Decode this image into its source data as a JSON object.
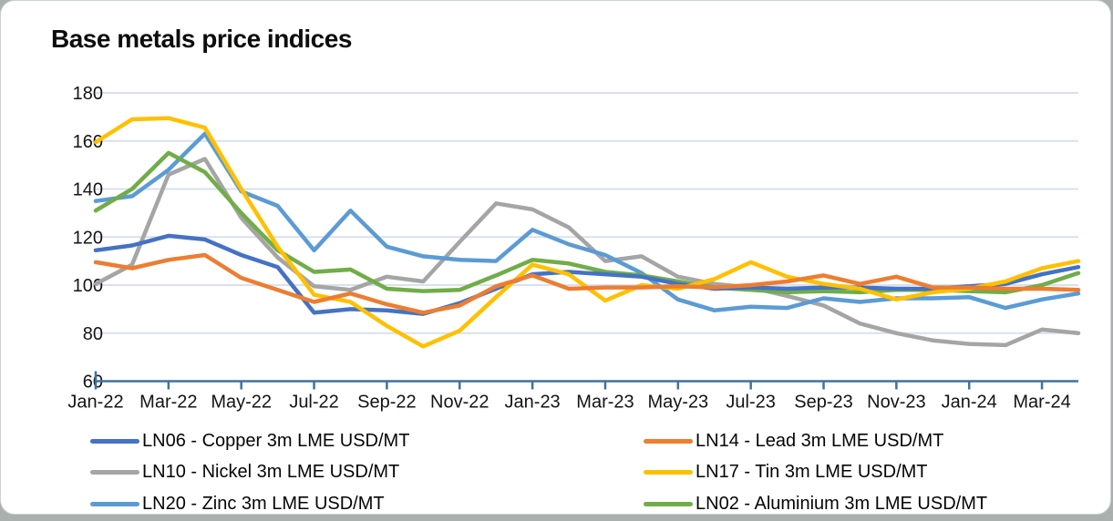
{
  "card": {
    "title": "Base metals price indices"
  },
  "colors": {
    "axis": "#41719C",
    "gridline": "#D9E1EC",
    "card_background": "#FFFFFF",
    "copper": "#4472C4",
    "lead": "#ED7D31",
    "nickel": "#A5A5A5",
    "tin": "#FFC000",
    "zinc": "#5B9BD5",
    "aluminium": "#70AD47"
  },
  "chart_data": {
    "type": "line",
    "title": "Base metals price indices",
    "xlabel": "",
    "ylabel": "",
    "ylim": [
      60,
      180
    ],
    "y_ticks": [
      60,
      80,
      100,
      120,
      140,
      160,
      180
    ],
    "grid": "horizontal",
    "legend_position": "bottom",
    "categories": [
      "Jan-22",
      "Feb-22",
      "Mar-22",
      "Apr-22",
      "May-22",
      "Jun-22",
      "Jul-22",
      "Aug-22",
      "Sep-22",
      "Oct-22",
      "Nov-22",
      "Dec-22",
      "Jan-23",
      "Feb-23",
      "Mar-23",
      "Apr-23",
      "May-23",
      "Jun-23",
      "Jul-23",
      "Aug-23",
      "Sep-23",
      "Oct-23",
      "Nov-23",
      "Dec-23",
      "Jan-24",
      "Feb-24",
      "Mar-24",
      "Apr-24"
    ],
    "x_tick_labels": [
      "Jan-22",
      "Mar-22",
      "May-22",
      "Jul-22",
      "Sep-22",
      "Nov-22",
      "Jan-23",
      "Mar-23",
      "May-23",
      "Jul-23",
      "Sep-23",
      "Nov-23",
      "Jan-24",
      "Mar-24"
    ],
    "series": [
      {
        "id": "LN06",
        "name": "LN06 - Copper 3m LME USD/MT",
        "color": "#4472C4",
        "values": [
          114.5,
          116.5,
          120.5,
          119,
          112.5,
          107.5,
          88.5,
          90,
          89.5,
          88,
          92.5,
          98.5,
          104.5,
          105.5,
          104.5,
          103.5,
          100.5,
          98.5,
          99,
          98.5,
          99,
          99,
          98.5,
          98.5,
          99.5,
          100.5,
          104.5,
          107.5
        ]
      },
      {
        "id": "LN14",
        "name": "LN14 - Lead 3m LME USD/MT",
        "color": "#ED7D31",
        "values": [
          109.5,
          107,
          110.5,
          112.5,
          103,
          98,
          93,
          96.5,
          92,
          88.5,
          91.5,
          99.5,
          104,
          98.5,
          99,
          99,
          99.5,
          99,
          100,
          101.5,
          104,
          100.5,
          103.5,
          99,
          99,
          98.5,
          98.5,
          98
        ]
      },
      {
        "id": "LN10",
        "name": "LN10 - Nickel 3m LME USD/MT",
        "color": "#A5A5A5",
        "values": [
          100.5,
          108.5,
          146,
          152.5,
          128,
          111.5,
          99.5,
          98,
          103.5,
          101.5,
          118,
          134,
          131.5,
          124,
          110,
          112,
          103.5,
          100.5,
          99,
          95.5,
          91.5,
          84,
          80,
          77,
          75.5,
          75,
          81.5,
          80
        ]
      },
      {
        "id": "LN17",
        "name": "LN17 - Tin 3m LME USD/MT",
        "color": "#FFC000",
        "values": [
          159.5,
          169,
          169.5,
          165.5,
          140,
          116,
          96,
          93,
          83,
          74.5,
          81,
          95,
          108.5,
          104.5,
          93.5,
          100,
          98.5,
          102.5,
          109.5,
          103.5,
          100.5,
          98.5,
          94,
          97,
          98.5,
          101.5,
          107,
          110
        ]
      },
      {
        "id": "LN20",
        "name": "LN20 - Zinc 3m LME USD/MT",
        "color": "#5B9BD5",
        "values": [
          135,
          137,
          148,
          163,
          139,
          133,
          114.5,
          131,
          116,
          112,
          110.5,
          110,
          123,
          117,
          112.5,
          105,
          94,
          89.5,
          91,
          90.5,
          94.5,
          93,
          94.5,
          94.5,
          95,
          90.5,
          94,
          96.5
        ]
      },
      {
        "id": "LN02",
        "name": "LN02 - Aluminium 3m LME USD/MT",
        "color": "#70AD47",
        "values": [
          131,
          140,
          155,
          147,
          130,
          114.5,
          105.5,
          106.5,
          98.5,
          97.5,
          98,
          104,
          110.5,
          109,
          105.5,
          104,
          101.5,
          99,
          98,
          97,
          97.5,
          97,
          98,
          98,
          97.5,
          97,
          100,
          105
        ]
      }
    ],
    "draw_order": [
      "LN10",
      "LN20",
      "LN02",
      "LN06",
      "LN17",
      "LN14"
    ],
    "legend_columns": [
      [
        "LN06",
        "LN10",
        "LN20"
      ],
      [
        "LN14",
        "LN17",
        "LN02"
      ]
    ]
  }
}
